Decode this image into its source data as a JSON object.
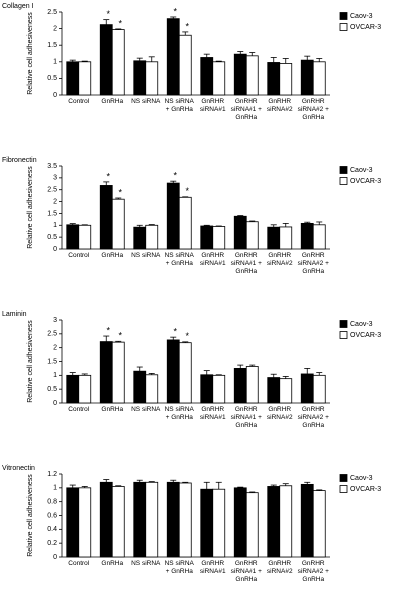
{
  "chart_data": [
    {
      "type": "bar",
      "title": "Collagen I",
      "y_label": "Relative cell adhesiveness",
      "categories": [
        "Control",
        "GnRHa",
        "NS siRNA",
        "NS siRNA + GnRHa",
        "GnRHR siRNA#1",
        "GnRHR siRNA#1 + GnRHa",
        "GnRHR siRNA#2",
        "GnRHR siRNA#2 + GnRHa"
      ],
      "series": [
        {
          "name": "Caov-3",
          "color": "#000000",
          "values": [
            1.0,
            2.12,
            1.03,
            2.3,
            1.13,
            1.23,
            0.98,
            1.05
          ],
          "errors": [
            0.05,
            0.15,
            0.08,
            0.05,
            0.1,
            0.08,
            0.15,
            0.12
          ],
          "annotations": [
            null,
            "*",
            null,
            "*",
            null,
            null,
            null,
            null
          ]
        },
        {
          "name": "OVCAR-3",
          "color": "#ffffff",
          "values": [
            1.0,
            1.97,
            1.0,
            1.8,
            1.0,
            1.18,
            0.95,
            1.0
          ],
          "errors": [
            0.02,
            0.02,
            0.15,
            0.1,
            0.02,
            0.1,
            0.15,
            0.1
          ],
          "annotations": [
            null,
            "*",
            null,
            "*",
            null,
            null,
            null,
            null
          ]
        }
      ],
      "ylim": [
        0,
        2.5
      ],
      "yticks": [
        0,
        0.5,
        1,
        1.5,
        2,
        2.5
      ],
      "legend": "top-right"
    },
    {
      "type": "bar",
      "title": "Fibronectin",
      "y_label": "Relative cell adhesiveness",
      "categories": [
        "Control",
        "GnRHa",
        "NS siRNA",
        "NS siRNA + GnRHa",
        "GnRHR siRNA#1",
        "GnRHR siRNA#1 + GnRHa",
        "GnRHR siRNA#2",
        "GnRHR siRNA#2 + GnRHa"
      ],
      "series": [
        {
          "name": "Caov-3",
          "color": "#000000",
          "values": [
            1.02,
            2.68,
            0.92,
            2.78,
            0.97,
            1.38,
            0.92,
            1.08
          ],
          "errors": [
            0.05,
            0.15,
            0.08,
            0.08,
            0.03,
            0.03,
            0.1,
            0.05
          ],
          "annotations": [
            null,
            "*",
            null,
            "*",
            null,
            null,
            null,
            null
          ]
        },
        {
          "name": "OVCAR-3",
          "color": "#ffffff",
          "values": [
            1.0,
            2.1,
            1.0,
            2.18,
            0.95,
            1.15,
            0.93,
            1.02
          ],
          "errors": [
            0.02,
            0.05,
            0.03,
            0.02,
            0.02,
            0.03,
            0.15,
            0.12
          ],
          "annotations": [
            null,
            "*",
            null,
            "*",
            null,
            null,
            null,
            null
          ]
        }
      ],
      "ylim": [
        0,
        3.5
      ],
      "yticks": [
        0,
        0.5,
        1,
        1.5,
        2,
        2.5,
        3,
        3.5
      ],
      "legend": "top-right"
    },
    {
      "type": "bar",
      "title": "Laminin",
      "y_label": "Relative cell adhesiveness",
      "categories": [
        "Control",
        "GnRHa",
        "NS siRNA",
        "NS siRNA + GnRHa",
        "GnRHR siRNA#1",
        "GnRHR siRNA#1 + GnRHa",
        "GnRHR siRNA#2",
        "GnRHR siRNA#2 + GnRHa"
      ],
      "series": [
        {
          "name": "Caov-3",
          "color": "#000000",
          "values": [
            1.0,
            2.22,
            1.15,
            2.28,
            1.02,
            1.25,
            0.92,
            1.05
          ],
          "errors": [
            0.1,
            0.2,
            0.15,
            0.1,
            0.15,
            0.12,
            0.12,
            0.2
          ],
          "annotations": [
            null,
            "*",
            null,
            "*",
            null,
            null,
            null,
            null
          ]
        },
        {
          "name": "OVCAR-3",
          "color": "#ffffff",
          "values": [
            1.0,
            2.2,
            1.02,
            2.18,
            1.0,
            1.32,
            0.88,
            1.0
          ],
          "errors": [
            0.05,
            0.03,
            0.05,
            0.03,
            0.02,
            0.05,
            0.08,
            0.1
          ],
          "annotations": [
            null,
            "*",
            null,
            "*",
            null,
            null,
            null,
            null
          ]
        }
      ],
      "ylim": [
        0,
        3
      ],
      "yticks": [
        0,
        0.5,
        1,
        1.5,
        2,
        2.5,
        3
      ],
      "legend": "top-right"
    },
    {
      "type": "bar",
      "title": "Vitronectin",
      "y_label": "Relative cell adhesiveness",
      "categories": [
        "Control",
        "GnRHa",
        "NS siRNA",
        "NS siRNA + GnRHa",
        "GnRHR siRNA#1",
        "GnRHR siRNA#1 + GnRHa",
        "GnRHR siRNA#2",
        "GnRHR siRNA#2 + GnRHa"
      ],
      "series": [
        {
          "name": "Caov-3",
          "color": "#000000",
          "values": [
            1.0,
            1.08,
            1.08,
            1.08,
            0.98,
            1.0,
            1.02,
            1.05
          ],
          "errors": [
            0.04,
            0.04,
            0.03,
            0.03,
            0.1,
            0.01,
            0.02,
            0.03
          ]
        },
        {
          "name": "OVCAR-3",
          "color": "#ffffff",
          "values": [
            1.0,
            1.02,
            1.08,
            1.07,
            0.98,
            0.93,
            1.03,
            0.96
          ],
          "errors": [
            0.02,
            0.01,
            0.01,
            0.01,
            0.1,
            0.01,
            0.03,
            0.01
          ]
        }
      ],
      "ylim": [
        0,
        1.2
      ],
      "yticks": [
        0,
        0.2,
        0.4,
        0.6,
        0.8,
        1,
        1.2
      ],
      "legend": "top-right"
    }
  ]
}
